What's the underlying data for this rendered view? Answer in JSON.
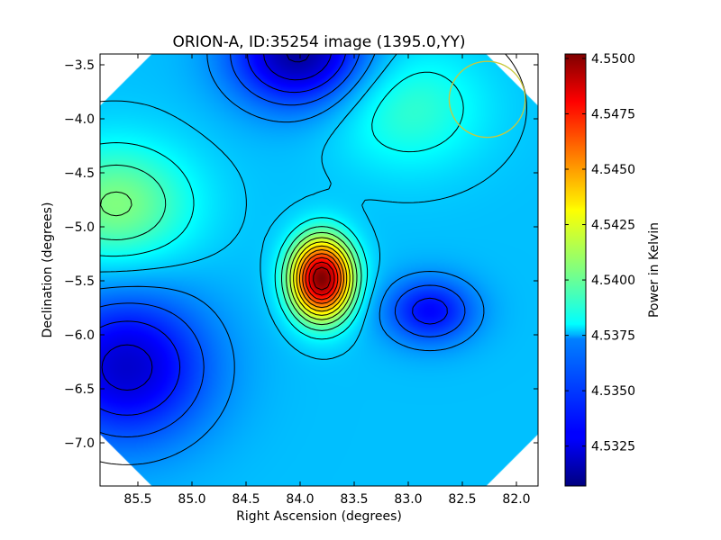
{
  "chart_data": {
    "type": "heatmap",
    "title": "ORION-A, ID:35254 image (1395.0,YY)",
    "xlabel": "Right Ascension (degrees)",
    "ylabel": "Declination (degrees)",
    "x_axis_inverted": true,
    "xlim": [
      85.85,
      81.8
    ],
    "ylim": [
      -7.4,
      -3.4
    ],
    "xticks": [
      "85.5",
      "85.0",
      "84.5",
      "84.0",
      "83.5",
      "83.0",
      "82.5",
      "82.0"
    ],
    "yticks": [
      "-3.5",
      "-4.0",
      "-4.5",
      "-5.0",
      "-5.5",
      "-6.0",
      "-6.5",
      "-7.0"
    ],
    "colormap": "jet",
    "colorbar": {
      "label": "Power in Kelvin",
      "vmin": 4.5307,
      "vmax": 4.5502,
      "ticks": [
        "4.5325",
        "4.5350",
        "4.5375",
        "4.5400",
        "4.5425",
        "4.5450",
        "4.5475",
        "4.5500"
      ]
    },
    "contours": true,
    "features": [
      {
        "type": "peak",
        "ra": 83.8,
        "dec": -5.48,
        "value": 4.5502
      },
      {
        "type": "minimum",
        "ra": 84.0,
        "dec": -3.4,
        "value": 4.5312
      },
      {
        "type": "minimum",
        "ra": 85.6,
        "dec": -6.3,
        "value": 4.5322
      },
      {
        "type": "minimum",
        "ra": 82.8,
        "dec": -5.78,
        "value": 4.5332
      },
      {
        "type": "local-maximum",
        "ra": 85.7,
        "dec": -4.8,
        "value": 4.5405
      },
      {
        "type": "local-maximum",
        "ra": 83.0,
        "dec": -3.9,
        "value": 4.539
      }
    ],
    "beam_circle": {
      "ra": 82.27,
      "dec": -3.82,
      "radius_deg": 0.37,
      "color": "#c8c83c"
    }
  }
}
